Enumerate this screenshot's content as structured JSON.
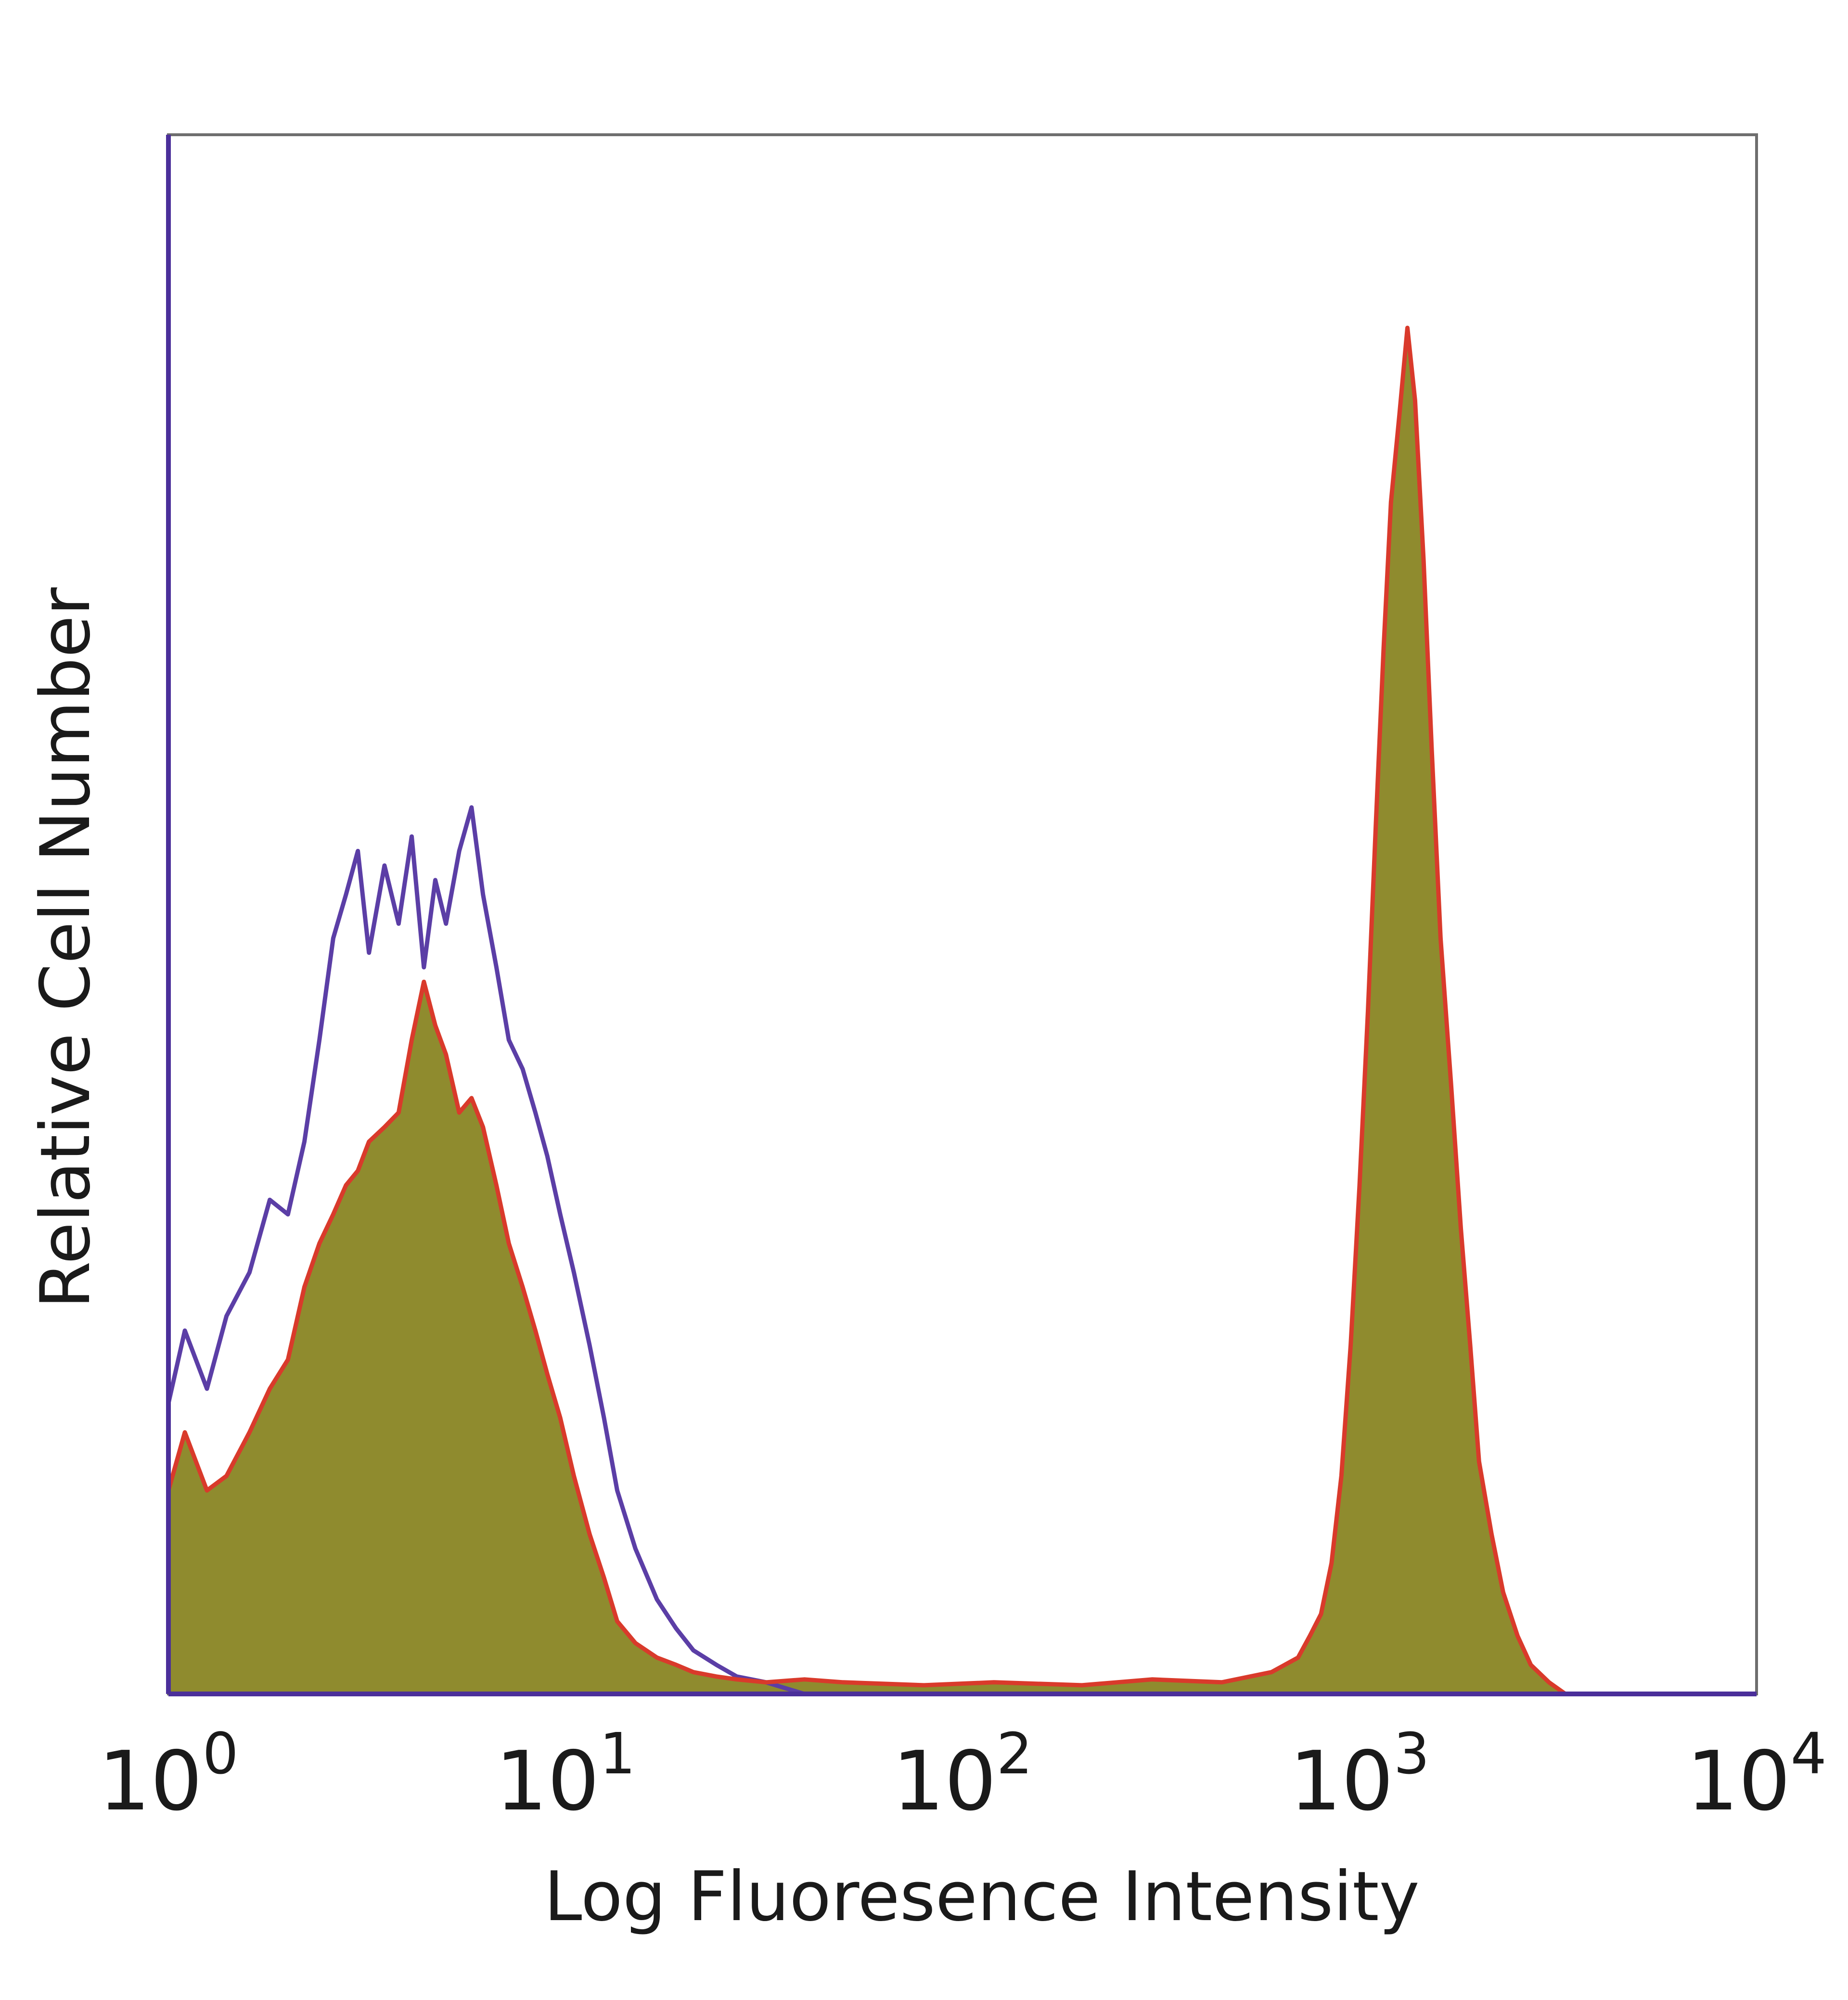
{
  "chart_data": {
    "type": "area",
    "title": "",
    "xlabel": "Log Fluoresence Intensity",
    "ylabel": "Relative Cell Number",
    "x_scale": "log",
    "xlim": [
      1,
      10000
    ],
    "ylim": [
      0,
      1
    ],
    "grid": false,
    "legend": "none",
    "x_ticks": [
      {
        "base": "10",
        "exp": "0",
        "value": 1
      },
      {
        "base": "10",
        "exp": "1",
        "value": 10
      },
      {
        "base": "10",
        "exp": "2",
        "value": 100
      },
      {
        "base": "10",
        "exp": "3",
        "value": 1000
      },
      {
        "base": "10",
        "exp": "4",
        "value": 10000
      }
    ],
    "series": [
      {
        "color": "#5b3ea6",
        "fill": "none",
        "x": [
          1,
          1.1,
          1.25,
          1.4,
          1.6,
          1.8,
          2.0,
          2.2,
          2.4,
          2.6,
          2.8,
          3.0,
          3.2,
          3.5,
          3.8,
          4.1,
          4.4,
          4.7,
          5.0,
          5.4,
          5.8,
          6.2,
          6.7,
          7.2,
          7.8,
          8.4,
          9.0,
          9.7,
          10.5,
          11.5,
          12.5,
          13.5,
          15,
          17,
          19,
          21,
          24,
          27,
          32,
          40
        ],
        "values": [
          0.2,
          0.25,
          0.21,
          0.26,
          0.29,
          0.34,
          0.33,
          0.38,
          0.45,
          0.52,
          0.55,
          0.58,
          0.51,
          0.57,
          0.53,
          0.59,
          0.5,
          0.56,
          0.53,
          0.58,
          0.61,
          0.55,
          0.5,
          0.45,
          0.43,
          0.4,
          0.37,
          0.33,
          0.29,
          0.24,
          0.19,
          0.14,
          0.1,
          0.065,
          0.045,
          0.03,
          0.02,
          0.012,
          0.008,
          0.0
        ]
      },
      {
        "color": "#d93a2b",
        "fill": "#8f8b2e",
        "x": [
          1,
          1.1,
          1.25,
          1.4,
          1.6,
          1.8,
          2.0,
          2.2,
          2.4,
          2.6,
          2.8,
          3.0,
          3.2,
          3.5,
          3.8,
          4.1,
          4.4,
          4.7,
          5.0,
          5.4,
          5.8,
          6.2,
          6.7,
          7.2,
          7.8,
          8.4,
          9.0,
          9.7,
          10.5,
          11.5,
          12.5,
          13.5,
          15,
          17,
          19,
          21,
          24,
          27,
          32,
          40,
          50,
          80,
          120,
          200,
          300,
          450,
          600,
          700,
          750,
          800,
          850,
          900,
          950,
          1000,
          1050,
          1100,
          1150,
          1200,
          1260,
          1320,
          1380,
          1450,
          1520,
          1600,
          1700,
          1800,
          1900,
          2000,
          2150,
          2300,
          2500,
          2700,
          3000,
          3300
        ],
        "values": [
          0.14,
          0.18,
          0.14,
          0.15,
          0.18,
          0.21,
          0.23,
          0.28,
          0.31,
          0.33,
          0.35,
          0.36,
          0.38,
          0.39,
          0.4,
          0.45,
          0.49,
          0.46,
          0.44,
          0.4,
          0.41,
          0.39,
          0.35,
          0.31,
          0.28,
          0.25,
          0.22,
          0.19,
          0.15,
          0.11,
          0.08,
          0.05,
          0.035,
          0.025,
          0.02,
          0.015,
          0.012,
          0.01,
          0.008,
          0.01,
          0.008,
          0.006,
          0.008,
          0.006,
          0.01,
          0.008,
          0.015,
          0.025,
          0.04,
          0.055,
          0.09,
          0.15,
          0.24,
          0.35,
          0.47,
          0.6,
          0.72,
          0.82,
          0.88,
          0.94,
          0.89,
          0.78,
          0.65,
          0.52,
          0.42,
          0.32,
          0.24,
          0.16,
          0.11,
          0.07,
          0.04,
          0.02,
          0.008,
          0.0
        ]
      }
    ]
  }
}
